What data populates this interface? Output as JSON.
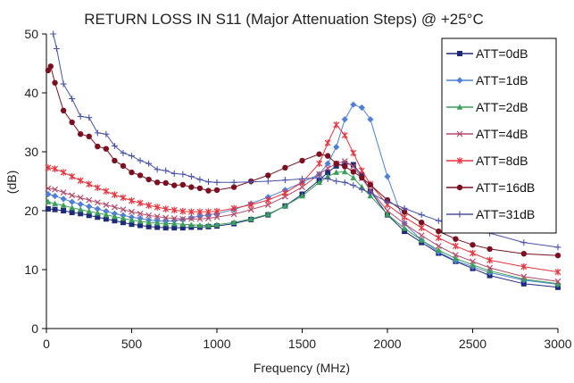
{
  "chart_data": {
    "type": "line",
    "title": "RETURN LOSS IN S11 (Major Attenuation Steps) @ +25°C",
    "xlabel": "Frequency (MHz)",
    "ylabel": "(dB)",
    "xlim": [
      0,
      3000
    ],
    "ylim": [
      0,
      50
    ],
    "xticks": [
      0,
      500,
      1000,
      1500,
      2000,
      2500,
      3000
    ],
    "yticks": [
      0,
      10,
      20,
      30,
      40,
      50
    ],
    "grid": false,
    "legend": "top-right",
    "series": [
      {
        "name": "ATT=0dB",
        "color": "#1f2b7a",
        "marker": "square",
        "x": [
          10,
          50,
          100,
          150,
          200,
          250,
          300,
          350,
          400,
          450,
          500,
          550,
          600,
          650,
          700,
          750,
          800,
          850,
          900,
          950,
          1000,
          1100,
          1200,
          1300,
          1400,
          1500,
          1600,
          1650,
          1700,
          1750,
          1800,
          1850,
          1900,
          2000,
          2100,
          2200,
          2300,
          2400,
          2500,
          2600,
          2800,
          3000
        ],
        "y": [
          20.3,
          20.2,
          20.0,
          19.7,
          19.5,
          19.2,
          18.9,
          18.6,
          18.3,
          18.0,
          17.7,
          17.5,
          17.3,
          17.2,
          17.1,
          17.1,
          17.1,
          17.2,
          17.2,
          17.3,
          17.4,
          17.8,
          18.5,
          19.3,
          20.8,
          22.8,
          25.2,
          26.5,
          27.6,
          28.0,
          27.8,
          26.0,
          23.3,
          19.3,
          16.5,
          14.6,
          12.8,
          11.4,
          10.2,
          9.0,
          7.6,
          7.0
        ]
      },
      {
        "name": "ATT=1dB",
        "color": "#4f7fd6",
        "marker": "diamond",
        "x": [
          10,
          50,
          100,
          150,
          200,
          250,
          300,
          350,
          400,
          450,
          500,
          550,
          600,
          650,
          700,
          750,
          800,
          850,
          900,
          950,
          1000,
          1100,
          1200,
          1300,
          1400,
          1500,
          1600,
          1650,
          1700,
          1750,
          1800,
          1850,
          1900,
          2000,
          2100,
          2200,
          2300,
          2400,
          2500,
          2600,
          2800,
          3000
        ],
        "y": [
          22.8,
          22.5,
          22.0,
          21.5,
          21.1,
          20.7,
          20.3,
          19.9,
          19.5,
          19.2,
          18.9,
          18.7,
          18.4,
          18.3,
          18.2,
          18.3,
          18.5,
          18.8,
          19.1,
          19.3,
          19.5,
          20.2,
          21.2,
          22.3,
          23.5,
          24.8,
          26.2,
          28.0,
          30.8,
          35.5,
          38.0,
          37.5,
          35.5,
          25.8,
          17.8,
          15.0,
          13.0,
          11.5,
          10.5,
          9.5,
          8.2,
          7.5
        ]
      },
      {
        "name": "ATT=2dB",
        "color": "#3aa05a",
        "marker": "triangle",
        "x": [
          10,
          50,
          100,
          150,
          200,
          250,
          300,
          350,
          400,
          450,
          500,
          550,
          600,
          650,
          700,
          750,
          800,
          850,
          900,
          950,
          1000,
          1100,
          1200,
          1300,
          1400,
          1500,
          1600,
          1650,
          1700,
          1750,
          1800,
          1850,
          1900,
          2000,
          2100,
          2200,
          2300,
          2400,
          2500,
          2600,
          2800,
          3000
        ],
        "y": [
          21.5,
          21.2,
          20.9,
          20.5,
          20.2,
          19.9,
          19.6,
          19.3,
          19.0,
          18.7,
          18.4,
          18.2,
          18.0,
          17.9,
          17.8,
          17.8,
          17.7,
          17.6,
          17.5,
          17.5,
          17.6,
          18.0,
          18.6,
          19.4,
          20.8,
          22.5,
          24.8,
          25.8,
          26.5,
          26.6,
          25.6,
          24.0,
          22.5,
          19.4,
          17.0,
          15.0,
          13.3,
          11.9,
          10.8,
          9.8,
          8.4,
          7.6
        ]
      },
      {
        "name": "ATT=4dB",
        "color": "#b44a6a",
        "marker": "x",
        "x": [
          10,
          50,
          100,
          150,
          200,
          250,
          300,
          350,
          400,
          450,
          500,
          550,
          600,
          650,
          700,
          750,
          800,
          850,
          900,
          950,
          1000,
          1100,
          1200,
          1300,
          1400,
          1500,
          1600,
          1650,
          1700,
          1750,
          1800,
          1850,
          1900,
          2000,
          2100,
          2200,
          2300,
          2400,
          2500,
          2600,
          2800,
          3000
        ],
        "y": [
          23.8,
          23.6,
          23.1,
          22.6,
          22.2,
          21.8,
          21.4,
          21.0,
          20.6,
          20.2,
          19.8,
          19.5,
          19.2,
          19.0,
          18.8,
          18.7,
          18.6,
          18.6,
          18.6,
          18.7,
          18.9,
          19.4,
          20.2,
          21.0,
          22.4,
          24.0,
          26.2,
          27.2,
          28.0,
          28.4,
          27.5,
          25.5,
          23.5,
          20.0,
          17.8,
          15.8,
          14.0,
          12.5,
          11.4,
          10.3,
          8.8,
          8.0
        ]
      },
      {
        "name": "ATT=8dB",
        "color": "#e8323c",
        "marker": "star",
        "x": [
          10,
          50,
          100,
          150,
          200,
          250,
          300,
          350,
          400,
          450,
          500,
          550,
          600,
          650,
          700,
          750,
          800,
          850,
          900,
          950,
          1000,
          1100,
          1200,
          1300,
          1400,
          1500,
          1600,
          1650,
          1700,
          1750,
          1800,
          1850,
          1900,
          2000,
          2100,
          2200,
          2300,
          2400,
          2500,
          2600,
          2800,
          3000
        ],
        "y": [
          27.3,
          27.1,
          26.5,
          25.8,
          25.1,
          24.5,
          23.9,
          23.3,
          22.7,
          22.2,
          21.7,
          21.3,
          20.9,
          20.6,
          20.3,
          20.1,
          19.9,
          19.8,
          19.8,
          19.8,
          19.9,
          20.4,
          21.0,
          21.8,
          23.0,
          24.8,
          28.0,
          31.5,
          34.6,
          32.8,
          29.8,
          26.8,
          24.5,
          21.0,
          18.9,
          17.1,
          15.4,
          14.0,
          12.8,
          11.6,
          10.5,
          9.6
        ]
      },
      {
        "name": "ATT=16dB",
        "color": "#7a1020",
        "marker": "circle",
        "x": [
          10,
          25,
          50,
          100,
          150,
          200,
          250,
          300,
          350,
          400,
          450,
          500,
          550,
          600,
          650,
          700,
          750,
          800,
          850,
          900,
          950,
          1000,
          1100,
          1200,
          1300,
          1400,
          1500,
          1600,
          1650,
          1700,
          1750,
          1800,
          1850,
          1900,
          2000,
          2100,
          2200,
          2300,
          2400,
          2500,
          2600,
          2800,
          3000
        ],
        "y": [
          43.8,
          44.5,
          41.7,
          37.0,
          35.0,
          33.0,
          32.6,
          30.9,
          30.5,
          28.5,
          27.6,
          26.5,
          26.0,
          25.3,
          24.8,
          24.7,
          24.3,
          24.4,
          24.0,
          23.8,
          23.4,
          23.5,
          24.0,
          25.0,
          26.0,
          27.3,
          28.5,
          29.6,
          29.3,
          28.0,
          27.5,
          26.6,
          25.6,
          24.4,
          21.8,
          19.8,
          18.0,
          16.5,
          15.2,
          14.2,
          13.5,
          12.7,
          12.4
        ]
      },
      {
        "name": "ATT=31dB",
        "color": "#4a52a8",
        "marker": "plus",
        "x": [
          40,
          60,
          100,
          150,
          200,
          250,
          300,
          350,
          400,
          450,
          500,
          550,
          600,
          650,
          700,
          750,
          800,
          850,
          900,
          950,
          1000,
          1100,
          1200,
          1300,
          1400,
          1500,
          1600,
          1650,
          1700,
          1750,
          1800,
          1850,
          1900,
          2000,
          2100,
          2200,
          2300,
          2400,
          2500,
          2600,
          2800,
          3000
        ],
        "y": [
          50,
          47.5,
          41.5,
          39.0,
          36.0,
          35.8,
          33.2,
          33.0,
          31.0,
          29.8,
          29.3,
          28.5,
          28.0,
          27.0,
          26.8,
          26.3,
          26.2,
          25.8,
          25.3,
          24.9,
          24.8,
          24.8,
          24.9,
          25.0,
          25.2,
          25.4,
          25.6,
          25.4,
          25.0,
          24.8,
          24.3,
          23.6,
          23.0,
          21.5,
          20.4,
          19.3,
          18.3,
          17.4,
          16.8,
          16.2,
          14.6,
          13.8
        ]
      }
    ]
  }
}
